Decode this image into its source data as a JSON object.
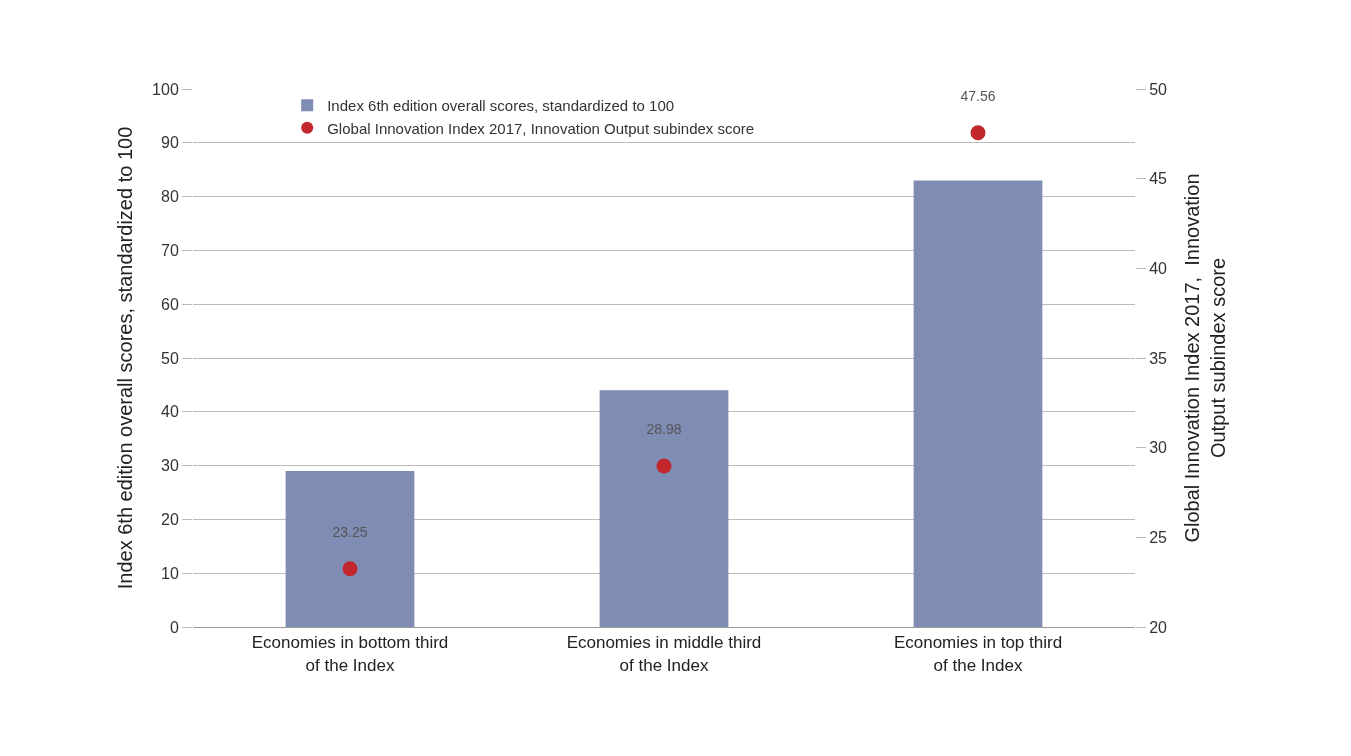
{
  "chart_data": {
    "type": "bar",
    "categories": [
      "Economies in bottom third of the Index",
      "Economies in middle third of the Index",
      "Economies in top third of the Index"
    ],
    "series": [
      {
        "name": "Index 6th edition overall scores, standardized to 100",
        "color": "#7f8cb4",
        "values": [
          29,
          44,
          83
        ]
      },
      {
        "name": "Global Innovation Index 2017, Innovation Output subindex score",
        "type": "scatter",
        "axis": "y2",
        "marker": "circle",
        "color": "#c1272d",
        "values": [
          23.25,
          28.98,
          47.56
        ],
        "value_labels": [
          "23.25",
          "28.98",
          "47.56"
        ]
      }
    ],
    "ylabel": "Index 6th edition overall scores, standardized to 100",
    "y2label": "Global Innovation Index 2017,  Innovation Output subindex score",
    "ylim": [
      0,
      100
    ],
    "yticks": [
      0,
      10,
      20,
      30,
      40,
      50,
      60,
      70,
      80,
      90,
      100
    ],
    "y2lim": [
      20,
      50
    ],
    "y2ticks": [
      20,
      25,
      30,
      35,
      40,
      45,
      50
    ],
    "grid": "y",
    "legend": "top left"
  }
}
